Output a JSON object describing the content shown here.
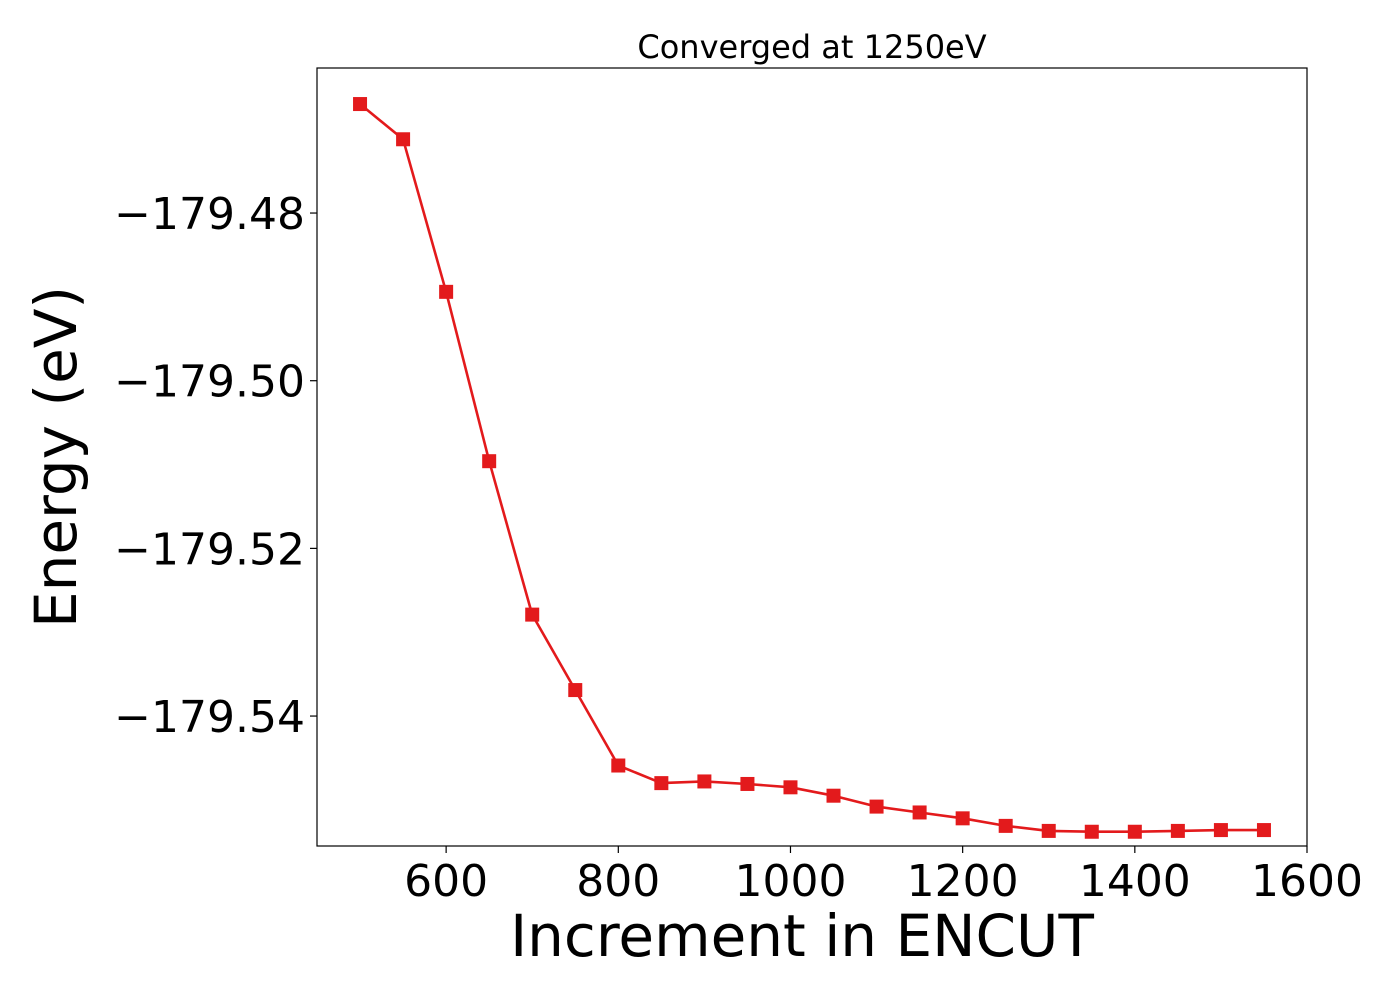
{
  "chart_data": {
    "type": "line",
    "title": "Converged at 1250eV",
    "xlabel": "Increment in ENCUT",
    "ylabel": "Energy (eV)",
    "xlim": [
      450,
      1600
    ],
    "ylim": [
      -179.5555,
      -179.4627
    ],
    "xticks": [
      600,
      800,
      1000,
      1200,
      1400,
      1600
    ],
    "xtick_labels": [
      "600",
      "800",
      "1000",
      "1200",
      "1400",
      "1600"
    ],
    "yticks": [
      -179.48,
      -179.5,
      -179.52,
      -179.54
    ],
    "ytick_labels": [
      "−179.48",
      "−179.50",
      "−179.52",
      "−179.54"
    ],
    "grid": false,
    "series": [
      {
        "color": "#e31a1c",
        "marker": "square",
        "x": [
          500,
          550,
          600,
          650,
          700,
          750,
          800,
          850,
          900,
          950,
          1000,
          1050,
          1100,
          1150,
          1200,
          1250,
          1300,
          1350,
          1400,
          1450,
          1500,
          1550
        ],
        "y": [
          -179.467,
          -179.4712,
          -179.4894,
          -179.5096,
          -179.5279,
          -179.5369,
          -179.5459,
          -179.548,
          -179.5478,
          -179.5481,
          -179.5485,
          -179.5495,
          -179.5508,
          -179.5515,
          -179.5522,
          -179.5531,
          -179.5537,
          -179.5538,
          -179.5538,
          -179.5537,
          -179.5536,
          -179.5536
        ]
      }
    ]
  }
}
